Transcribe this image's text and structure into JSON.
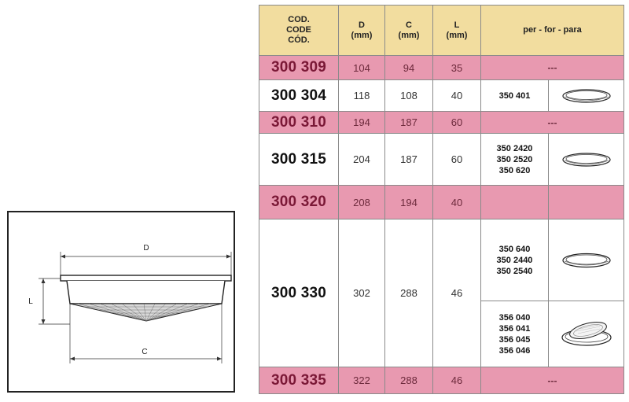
{
  "drawing": {
    "labels": {
      "d": "D",
      "c": "C",
      "l": "L"
    }
  },
  "table": {
    "headers": {
      "code": [
        "COD.",
        "CODE",
        "CÓD."
      ],
      "d": [
        "D",
        "(mm)"
      ],
      "c": [
        "C",
        "(mm)"
      ],
      "l": [
        "L",
        "(mm)"
      ],
      "for": "per - for - para"
    },
    "rows": [
      {
        "code": "300 309",
        "d": "104",
        "c": "94",
        "l": "35",
        "for": "---"
      },
      {
        "code": "300 304",
        "d": "118",
        "c": "108",
        "l": "40",
        "refs": [
          "350 401"
        ],
        "ring": "flat-ring-icon"
      },
      {
        "code": "300 310",
        "d": "194",
        "c": "187",
        "l": "60",
        "for": "---"
      },
      {
        "code": "300 315",
        "d": "204",
        "c": "187",
        "l": "60",
        "refs": [
          "350 2420",
          "350 2520",
          "350 620"
        ],
        "ring": "flat-ring-icon"
      },
      {
        "code": "300 320",
        "d": "208",
        "c": "194",
        "l": "40"
      },
      {
        "code": "300 330",
        "d": "302",
        "c": "288",
        "l": "46",
        "groups": [
          {
            "refs": [
              "350 640",
              "350 2440",
              "350 2540"
            ],
            "ring": "flat-ring-icon"
          },
          {
            "refs": [
              "356 040",
              "356 041",
              "356 045",
              "356 046"
            ],
            "ring": "clip-ring-icon"
          }
        ]
      },
      {
        "code": "300 335",
        "d": "322",
        "c": "288",
        "l": "46",
        "for": "---"
      }
    ]
  },
  "colors": {
    "header": "#f2dd9f",
    "pink_row": "#e899b0",
    "code_pink": "#7a1836"
  }
}
